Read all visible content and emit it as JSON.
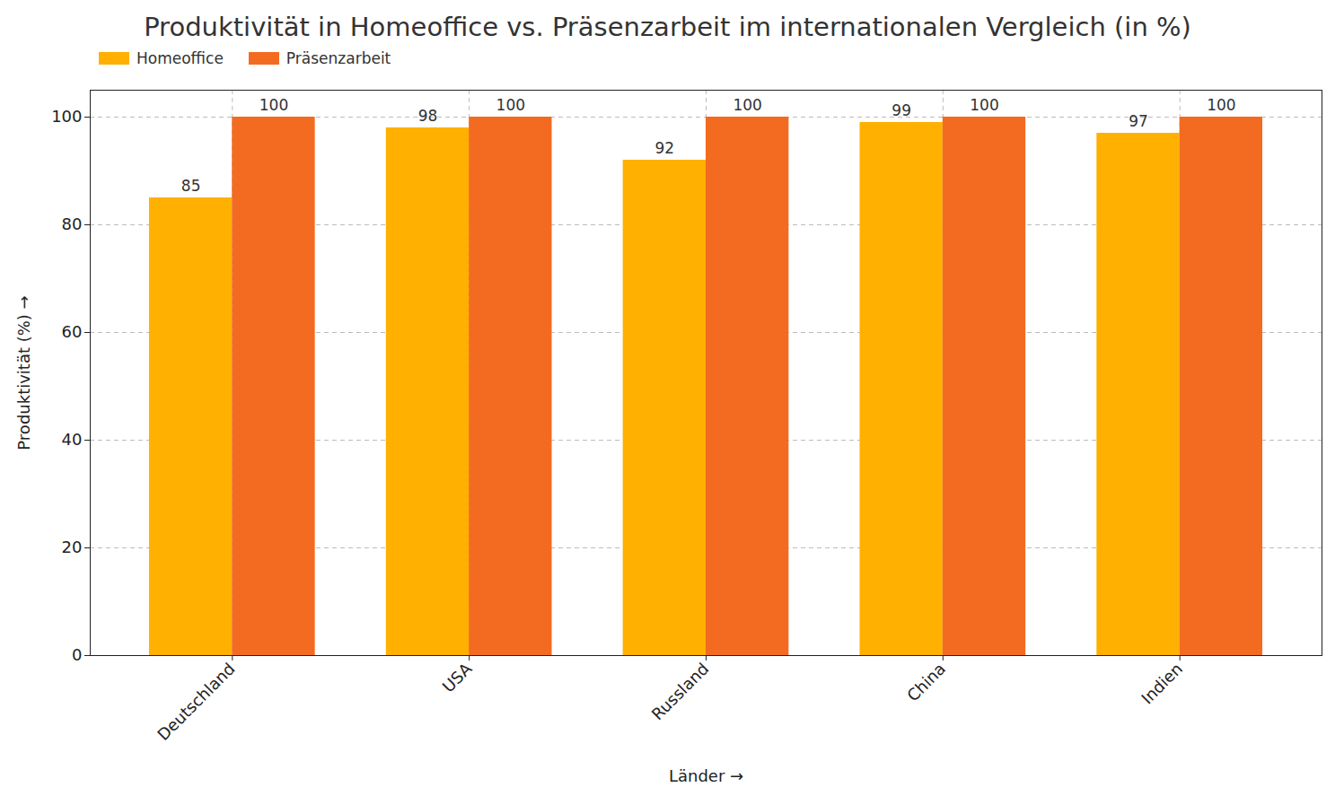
{
  "chart_data": {
    "type": "bar",
    "title": "Produktivität in Homeoffice vs. Präsenzarbeit im internationalen Vergleich (in %)",
    "x_label": "Länder",
    "y_label": "Produktivität (%)",
    "categories": [
      "Deutschland",
      "USA",
      "Russland",
      "China",
      "Indien"
    ],
    "series": [
      {
        "name": "Homeoffice",
        "color": "#FFB000",
        "values": [
          85,
          98,
          92,
          99,
          97
        ]
      },
      {
        "name": "Präsenzarbeit",
        "color": "#F36B21",
        "values": [
          100,
          100,
          100,
          100,
          100
        ]
      }
    ],
    "ylim": [
      0,
      105
    ],
    "yticks": [
      0,
      20,
      40,
      60,
      80,
      100
    ],
    "grid": true,
    "legend": "upper left",
    "data_labels": true
  }
}
